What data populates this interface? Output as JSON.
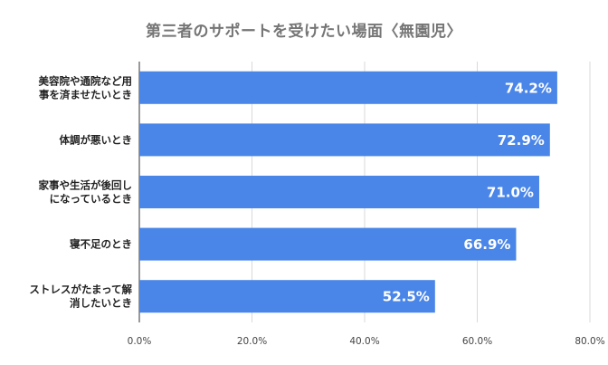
{
  "chart_data": {
    "type": "bar",
    "orientation": "horizontal",
    "title": "第三者のサポートを受けたい場面〈無園児〉",
    "categories": [
      [
        "美容院や通院など用",
        "事を済ませたいとき"
      ],
      [
        "体調が悪いとき"
      ],
      [
        "家事や生活が後回し",
        "になっているとき"
      ],
      [
        "寝不足のとき"
      ],
      [
        "ストレスがたまって解",
        "消したいとき"
      ]
    ],
    "values": [
      74.2,
      72.9,
      71.0,
      66.9,
      52.5
    ],
    "data_labels": [
      "74.2%",
      "72.9%",
      "71.0%",
      "66.9%",
      "52.5%"
    ],
    "xlim": [
      0,
      80
    ],
    "x_ticks": [
      0,
      20,
      40,
      60,
      80
    ],
    "x_tick_labels": [
      "0.0%",
      "20.0%",
      "40.0%",
      "60.0%",
      "80.0%"
    ],
    "bar_color": "#4a86e8",
    "grid": true,
    "legend": "none"
  }
}
